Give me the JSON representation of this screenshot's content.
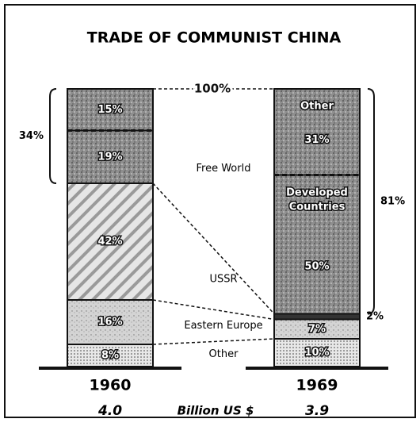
{
  "chart_data": {
    "type": "stacked_bar",
    "title": "TRADE OF COMMUNIST CHINA",
    "categories": [
      "1960",
      "1969"
    ],
    "ylim": [
      0,
      100
    ],
    "top_label": "100%",
    "series": [
      {
        "name": "Other",
        "color": "#e2e2e2",
        "pattern": "dots",
        "values": [
          8,
          10
        ],
        "value_labels": [
          "8%",
          "10%"
        ]
      },
      {
        "name": "Eastern Europe",
        "color": "#cfcfcf",
        "pattern": "speckle",
        "values": [
          16,
          7
        ],
        "value_labels": [
          "16%",
          "7%"
        ]
      },
      {
        "name": "USSR",
        "color": "#d8d8d8",
        "pattern": "hatch",
        "values": [
          42,
          2
        ],
        "value_labels": [
          "42%",
          "2%"
        ]
      },
      {
        "name": "Free World",
        "color": "#9a9a9a",
        "pattern": "speckle",
        "values": [
          19,
          50
        ],
        "value_labels": [
          "19%",
          "50%"
        ],
        "segment_labels": [
          null,
          "Developed Countries"
        ]
      },
      {
        "color": "#9a9a9a",
        "pattern": "speckle",
        "values": [
          15,
          31
        ],
        "value_labels": [
          "15%",
          "31%"
        ],
        "segment_labels": [
          null,
          "Other"
        ]
      }
    ],
    "brackets": [
      {
        "category": 0,
        "series": [
          3,
          4
        ],
        "value": 34,
        "label": "34%"
      },
      {
        "category": 1,
        "series": [
          3,
          4
        ],
        "value": 81,
        "label": "81%"
      }
    ],
    "totals": {
      "values": [
        4.0,
        3.9
      ],
      "value_labels": [
        "4.0",
        "3.9"
      ],
      "label": "Billion US $"
    }
  }
}
